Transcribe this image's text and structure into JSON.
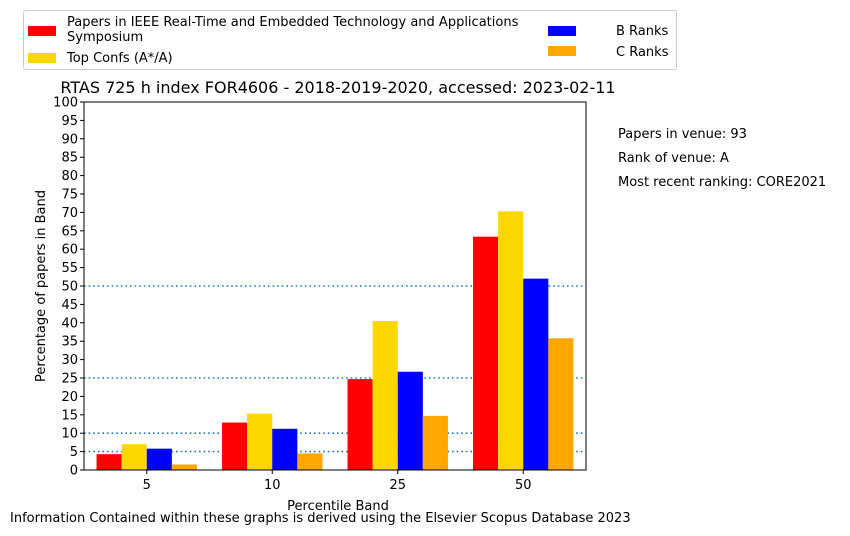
{
  "chart_data": {
    "type": "bar",
    "title": "RTAS 725 h index FOR4606 - 2018-2019-2020, accessed: 2023-02-11",
    "xlabel": "Percentile Band",
    "ylabel": "Percentage of papers in Band",
    "categories": [
      "5",
      "10",
      "25",
      "50"
    ],
    "ylim": [
      0,
      100
    ],
    "yticks": [
      "0",
      "5",
      "10",
      "15",
      "20",
      "25",
      "30",
      "35",
      "40",
      "45",
      "50",
      "55",
      "60",
      "65",
      "70",
      "75",
      "80",
      "85",
      "90",
      "95",
      "100"
    ],
    "reference_lines": [
      5,
      10,
      25,
      50
    ],
    "series": [
      {
        "name": "Papers in IEEE Real-Time and Embedded Technology and Applications Symposium",
        "color": "#ff0000",
        "values": [
          4.3,
          12.9,
          24.7,
          63.4
        ]
      },
      {
        "name": "Top Confs (A*/A)",
        "color": "#ffd700",
        "values": [
          7.0,
          15.3,
          40.5,
          70.3
        ]
      },
      {
        "name": "B Ranks",
        "color": "#0000ff",
        "values": [
          5.8,
          11.2,
          26.7,
          52.0
        ]
      },
      {
        "name": "C Ranks",
        "color": "#ffa500",
        "values": [
          1.5,
          4.5,
          14.7,
          35.8
        ]
      }
    ],
    "legend_position": "top"
  },
  "legend": {
    "item1_line1": "Papers in IEEE Real-Time and Embedded Technology and Applications",
    "item1_line2": "Symposium",
    "item2": "Top Confs (A*/A)",
    "item3": "B Ranks",
    "item4": "C Ranks"
  },
  "side_info": {
    "papers": "Papers in venue: 93",
    "rank": "Rank of venue: A",
    "recent": "Most recent ranking: CORE2021"
  },
  "footer": "Information Contained within these graphs is derived using the Elsevier Scopus Database 2023"
}
